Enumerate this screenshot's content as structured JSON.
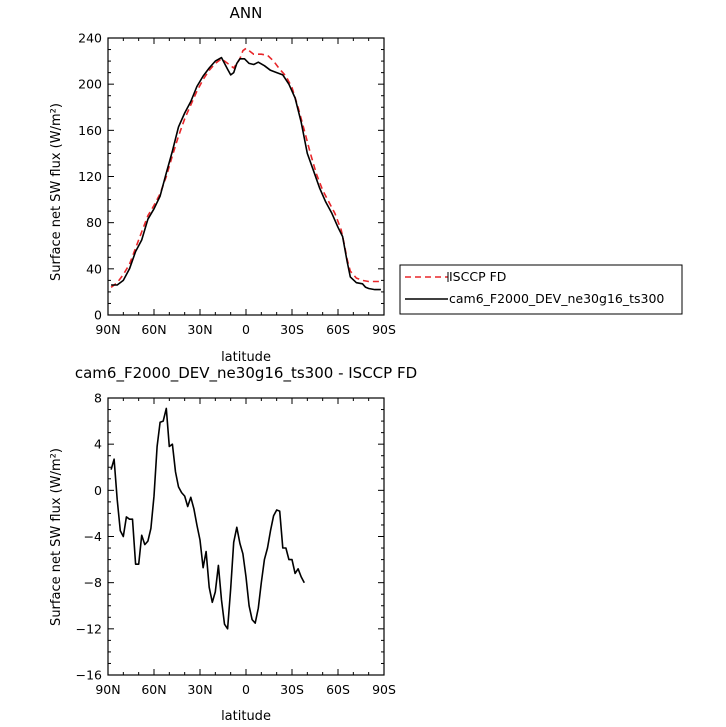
{
  "chart_data": [
    {
      "type": "line",
      "title": "ANN",
      "xlabel": "latitude",
      "ylabel": "Surface net SW flux (W/m²)",
      "xlim": [
        90,
        -90
      ],
      "ylim": [
        0,
        240
      ],
      "x_ticks": [
        {
          "value": 90,
          "label": "90N"
        },
        {
          "value": 60,
          "label": "60N"
        },
        {
          "value": 30,
          "label": "30N"
        },
        {
          "value": 0,
          "label": "0"
        },
        {
          "value": -30,
          "label": "30S"
        },
        {
          "value": -60,
          "label": "60S"
        },
        {
          "value": -90,
          "label": "90S"
        }
      ],
      "y_ticks": [
        0,
        40,
        80,
        120,
        160,
        200,
        240
      ],
      "legend_position": "outside-right",
      "series": [
        {
          "name": "ISCCP FD",
          "color": "#e8262a",
          "dash": "dashed",
          "points": [
            [
              88,
              24
            ],
            [
              84,
              28
            ],
            [
              80,
              35
            ],
            [
              76,
              44
            ],
            [
              72,
              58
            ],
            [
              68,
              72
            ],
            [
              64,
              86
            ],
            [
              60,
              95
            ],
            [
              56,
              105
            ],
            [
              52,
              120
            ],
            [
              48,
              138
            ],
            [
              44,
              155
            ],
            [
              40,
              170
            ],
            [
              36,
              182
            ],
            [
              32,
              194
            ],
            [
              28,
              204
            ],
            [
              24,
              212
            ],
            [
              20,
              218
            ],
            [
              16,
              222
            ],
            [
              12,
              218
            ],
            [
              8,
              214
            ],
            [
              4,
              222
            ],
            [
              2,
              229
            ],
            [
              0,
              231
            ],
            [
              -2,
              229
            ],
            [
              -5,
              226
            ],
            [
              -10,
              226
            ],
            [
              -14,
              225
            ],
            [
              -18,
              220
            ],
            [
              -22,
              213
            ],
            [
              -26,
              207
            ],
            [
              -30,
              197
            ],
            [
              -34,
              180
            ],
            [
              -38,
              160
            ],
            [
              -42,
              140
            ],
            [
              -46,
              122
            ],
            [
              -50,
              108
            ],
            [
              -54,
              98
            ],
            [
              -58,
              88
            ],
            [
              -62,
              74
            ],
            [
              -64,
              62
            ],
            [
              -66,
              48
            ],
            [
              -68,
              38
            ],
            [
              -72,
              32
            ],
            [
              -76,
              30
            ],
            [
              -80,
              29
            ],
            [
              -84,
              29
            ],
            [
              -88,
              29
            ]
          ]
        },
        {
          "name": "cam6_F2000_DEV_ne30g16_ts300",
          "color": "#000000",
          "dash": "solid",
          "points": [
            [
              88,
              26
            ],
            [
              84,
              26
            ],
            [
              80,
              30
            ],
            [
              76,
              40
            ],
            [
              72,
              55
            ],
            [
              68,
              65
            ],
            [
              64,
              83
            ],
            [
              60,
              92
            ],
            [
              56,
              103
            ],
            [
              52,
              123
            ],
            [
              48,
              142
            ],
            [
              44,
              163
            ],
            [
              40,
              175
            ],
            [
              36,
              185
            ],
            [
              32,
              198
            ],
            [
              28,
              207
            ],
            [
              24,
              214
            ],
            [
              20,
              220
            ],
            [
              16,
              223
            ],
            [
              12,
              213
            ],
            [
              10,
              208
            ],
            [
              8,
              210
            ],
            [
              6,
              218
            ],
            [
              4,
              222
            ],
            [
              1,
              222
            ],
            [
              -2,
              218
            ],
            [
              -5,
              217
            ],
            [
              -8,
              219
            ],
            [
              -12,
              216
            ],
            [
              -16,
              212
            ],
            [
              -20,
              210
            ],
            [
              -24,
              208
            ],
            [
              -28,
              200
            ],
            [
              -32,
              188
            ],
            [
              -36,
              167
            ],
            [
              -40,
              140
            ],
            [
              -44,
              125
            ],
            [
              -48,
              110
            ],
            [
              -52,
              98
            ],
            [
              -56,
              88
            ],
            [
              -60,
              76
            ],
            [
              -63,
              68
            ],
            [
              -66,
              46
            ],
            [
              -68,
              33
            ],
            [
              -72,
              28
            ],
            [
              -76,
              27
            ],
            [
              -78,
              24
            ],
            [
              -80,
              23
            ],
            [
              -84,
              22
            ],
            [
              -88,
              22
            ]
          ]
        }
      ]
    },
    {
      "type": "line",
      "title": "cam6_F2000_DEV_ne30g16_ts300 - ISCCP FD",
      "xlabel": "latitude",
      "ylabel": "Surface net SW flux (W/m²)",
      "xlim": [
        90,
        -90
      ],
      "ylim": [
        -16,
        8
      ],
      "x_ticks": [
        {
          "value": 90,
          "label": "90N"
        },
        {
          "value": 60,
          "label": "60N"
        },
        {
          "value": 30,
          "label": "30N"
        },
        {
          "value": 0,
          "label": "0"
        },
        {
          "value": -30,
          "label": "30S"
        },
        {
          "value": -60,
          "label": "60S"
        },
        {
          "value": -90,
          "label": "90S"
        }
      ],
      "y_ticks": [
        -16,
        -12,
        -8,
        -4,
        0,
        4,
        8
      ],
      "series": [
        {
          "color": "#000000",
          "dash": "solid",
          "points": [
            [
              88,
              1.8
            ],
            [
              86,
              2.7
            ],
            [
              84,
              -0.8
            ],
            [
              82,
              -3.5
            ],
            [
              80,
              -4
            ],
            [
              78,
              -2.3
            ],
            [
              76,
              -2.5
            ],
            [
              74,
              -2.5
            ],
            [
              72,
              -6.4
            ],
            [
              70,
              -6.4
            ],
            [
              68,
              -3.9
            ],
            [
              66,
              -4.7
            ],
            [
              64,
              -4.4
            ],
            [
              62,
              -3.3
            ],
            [
              60,
              -0.5
            ],
            [
              58,
              3.8
            ],
            [
              56,
              5.9
            ],
            [
              54,
              6.0
            ],
            [
              52,
              7.1
            ],
            [
              50,
              3.8
            ],
            [
              48,
              4
            ],
            [
              46,
              1.6
            ],
            [
              44,
              0.3
            ],
            [
              42,
              -0.2
            ],
            [
              40,
              -0.5
            ],
            [
              38,
              -1.4
            ],
            [
              36,
              -0.6
            ],
            [
              34,
              -1.6
            ],
            [
              32,
              -3
            ],
            [
              30,
              -4.3
            ],
            [
              28,
              -6.7
            ],
            [
              26,
              -5.3
            ],
            [
              24,
              -8.4
            ],
            [
              22,
              -9.7
            ],
            [
              20,
              -8.8
            ],
            [
              18,
              -6.5
            ],
            [
              16,
              -9.5
            ],
            [
              14,
              -11.6
            ],
            [
              12,
              -12
            ],
            [
              10,
              -8.5
            ],
            [
              8,
              -4.5
            ],
            [
              6,
              -3.2
            ],
            [
              4,
              -4.6
            ],
            [
              2,
              -5.5
            ],
            [
              0,
              -7.5
            ],
            [
              -2,
              -10
            ],
            [
              -4,
              -11.2
            ],
            [
              -6,
              -11.5
            ],
            [
              -8,
              -10.2
            ],
            [
              -10,
              -8
            ],
            [
              -12,
              -6
            ],
            [
              -14,
              -5
            ],
            [
              -16,
              -3.5
            ],
            [
              -18,
              -2.2
            ],
            [
              -20,
              -1.7
            ],
            [
              -22,
              -1.8
            ],
            [
              -24,
              -5
            ],
            [
              -26,
              -5
            ],
            [
              -28,
              -6
            ],
            [
              -30,
              -6
            ],
            [
              -32,
              -7.2
            ],
            [
              -34,
              -6.8
            ],
            [
              -36,
              -7.5
            ],
            [
              -38,
              -8
            ]
          ]
        }
      ]
    }
  ]
}
